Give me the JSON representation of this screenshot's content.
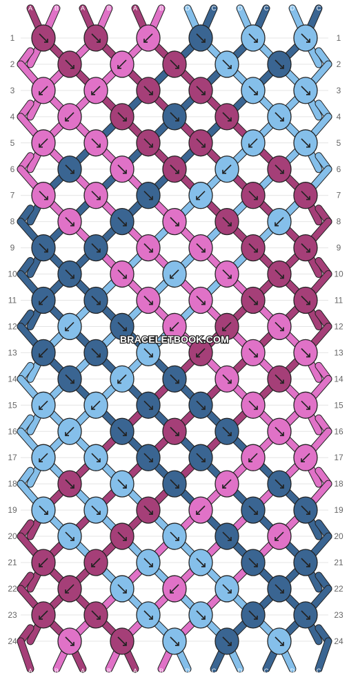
{
  "watermark": "BRACELETBOOK.COM",
  "colors": {
    "A": "#a53f78",
    "B": "#e072c7",
    "C": "#3a6592",
    "D": "#85bfea",
    "outline": "#222222",
    "guide": "#e4e4e4",
    "rownum": "#666666"
  },
  "top_labels": [
    "A",
    "B",
    "A",
    "B",
    "A",
    "B",
    "D",
    "C",
    "D",
    "C",
    "D",
    "C"
  ],
  "bottom_labels": [
    "A",
    "B",
    "A",
    "B",
    "A",
    "B",
    "D",
    "C",
    "D",
    "C",
    "D",
    "C"
  ],
  "row_numbers": [
    "1",
    "2",
    "3",
    "4",
    "5",
    "6",
    "7",
    "8",
    "9",
    "10",
    "11",
    "12",
    "13",
    "14",
    "15",
    "16",
    "17",
    "18",
    "19",
    "20",
    "21",
    "22",
    "23",
    "24"
  ],
  "knots": [
    [
      "A↘",
      "A↘",
      "B↙",
      "C↘",
      "D↘",
      "D↘"
    ],
    [
      "A↘",
      "B↙",
      "A↘",
      "D↘",
      "C↘"
    ],
    [
      "B↙",
      "B↙",
      "A↘",
      "A↘",
      "D↘",
      "D↘"
    ],
    [
      "B↙",
      "A↘",
      "C↘",
      "A↘",
      "D↘"
    ],
    [
      "B↙",
      "B↘",
      "A↘",
      "A↘",
      "D↙",
      "D↘"
    ],
    [
      "C↘",
      "B↘",
      "A↘",
      "D↙",
      "A↘"
    ],
    [
      "B↘",
      "B↘",
      "C↘",
      "D↙",
      "A↘",
      "A↘"
    ],
    [
      "B↘",
      "C↘",
      "B↘",
      "A↘",
      "D↙"
    ],
    [
      "C↘",
      "C↘",
      "B↘",
      "B↘",
      "A↘",
      "A↘"
    ],
    [
      "C↘",
      "B↘",
      "D↙",
      "B↘",
      "A↘"
    ],
    [
      "C↙",
      "C↘",
      "B↘",
      "B↘",
      "A↘",
      "A↘"
    ],
    [
      "D↙",
      "C↘",
      "B↙",
      "A↙",
      "B↘"
    ],
    [
      "C↙",
      "C↘",
      "D↘",
      "A↙",
      "B↘",
      "B↘"
    ],
    [
      "C↘",
      "D↙",
      "C↘",
      "B↘",
      "A↘"
    ],
    [
      "D↙",
      "D↙",
      "C↘",
      "C↘",
      "B↘",
      "B↘"
    ],
    [
      "D↙",
      "C↘",
      "A↘",
      "C↘",
      "B↘"
    ],
    [
      "D↙",
      "D↘",
      "C↘",
      "C↘",
      "B↙",
      "B↙"
    ],
    [
      "A↘",
      "D↘",
      "C↘",
      "B↙",
      "C↘"
    ],
    [
      "D↘",
      "D↘",
      "A↘",
      "B↙",
      "C↘",
      "C↘"
    ],
    [
      "D↘",
      "A↘",
      "D↘",
      "C↘",
      "B↙"
    ],
    [
      "A↙",
      "A↙",
      "D↘",
      "D↘",
      "C↘",
      "C↘"
    ],
    [
      "A↙",
      "D↘",
      "B↙",
      "D↘",
      "C↘"
    ],
    [
      "A↙",
      "A↘",
      "D↘",
      "D↘",
      "C↘",
      "C↘"
    ],
    [
      "B↘",
      "A↘",
      "D↘",
      "C↘",
      "D↘"
    ]
  ]
}
